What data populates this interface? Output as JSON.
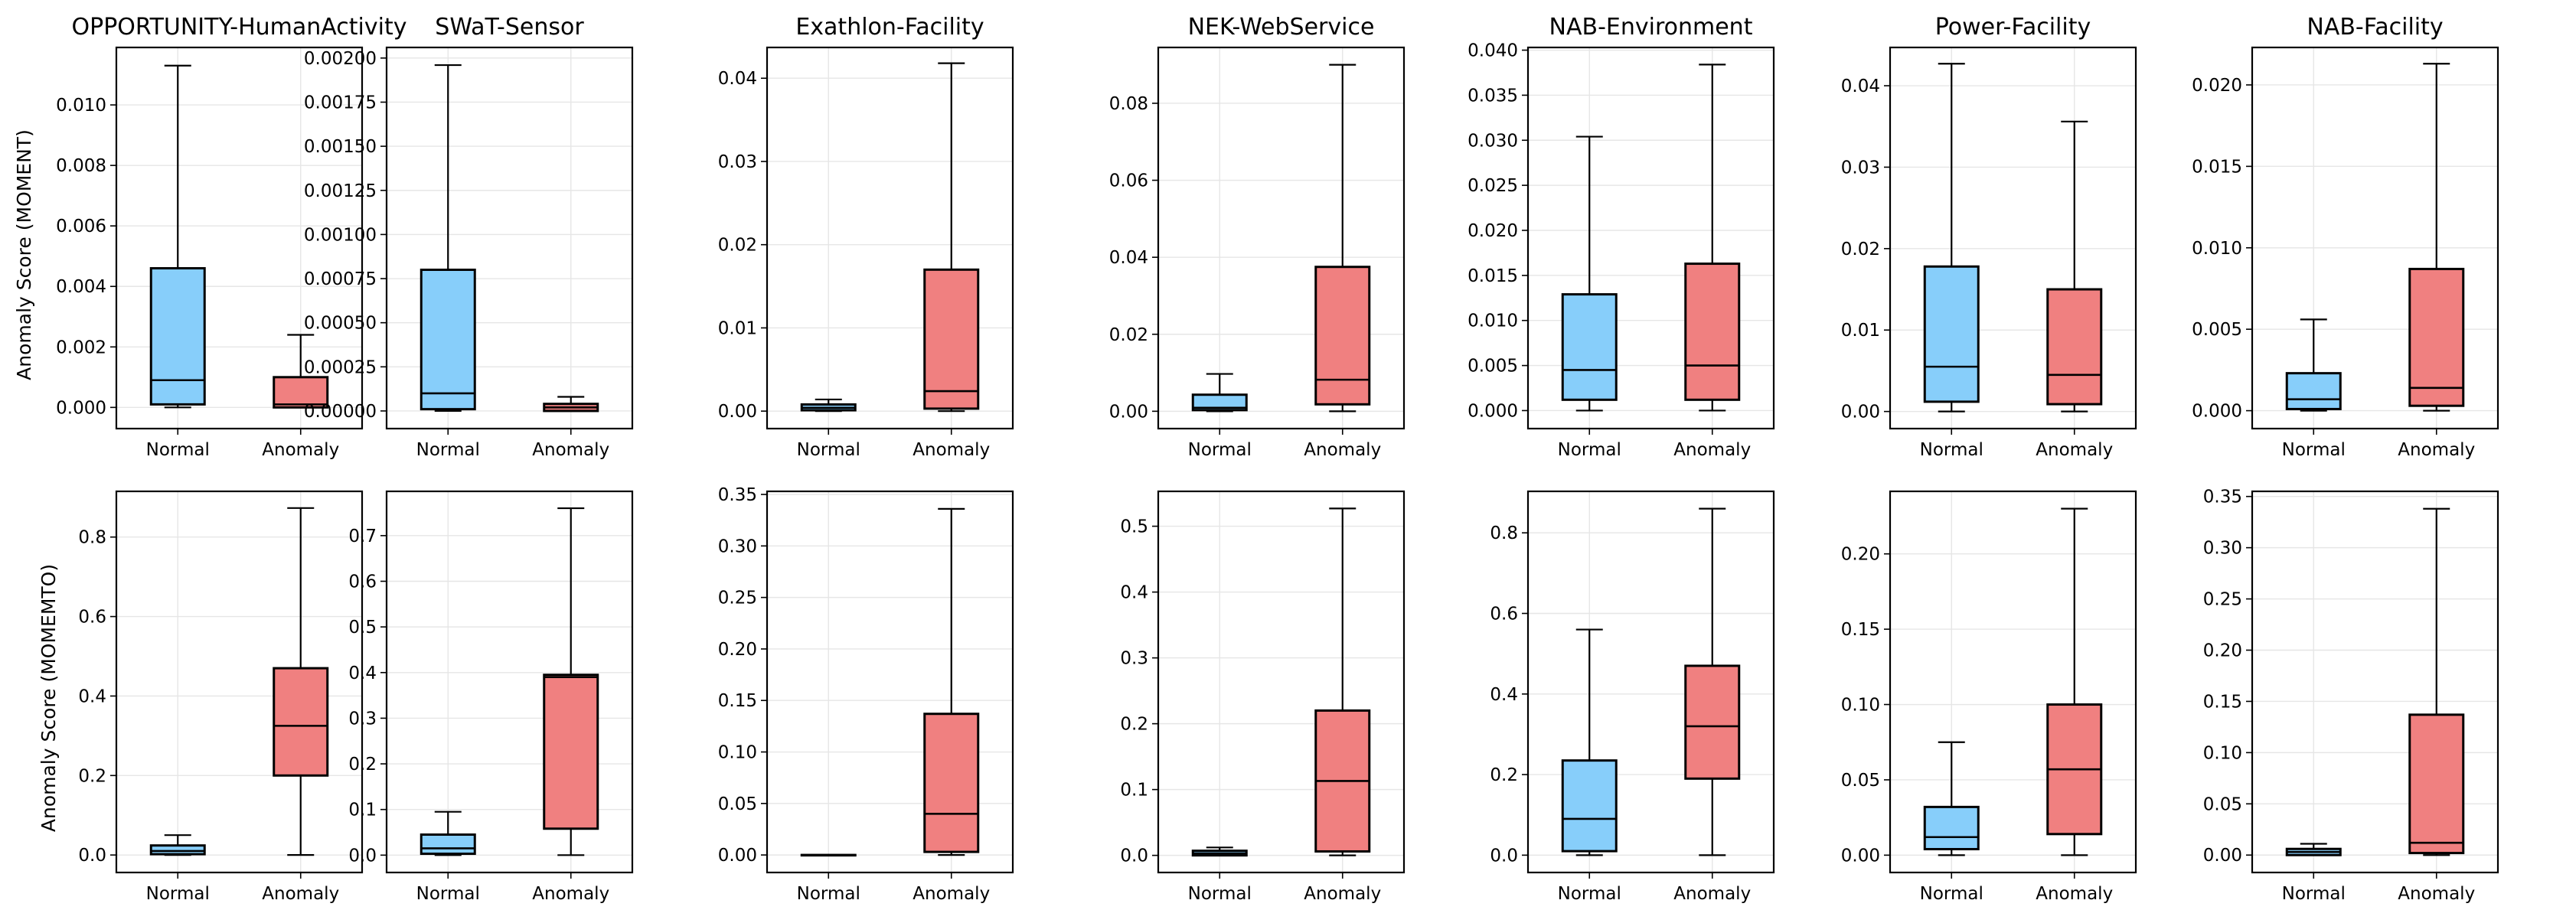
{
  "colors": {
    "normal": "#87cefa",
    "anomaly": "#f08080"
  },
  "row_ylabels": [
    "Anomaly Score (MOMENT)",
    "Anomaly Score (MOMEMTO)"
  ],
  "chart_data": [
    {
      "type": "box",
      "row": 0,
      "title": "OPPORTUNITY-HumanActivity",
      "categories": [
        "Normal",
        "Anomaly"
      ],
      "ylim": [
        -0.0007,
        0.0119
      ],
      "yticks": [
        "0.000",
        "0.002",
        "0.004",
        "0.006",
        "0.008",
        "0.010"
      ],
      "ytick_values": [
        0,
        0.002,
        0.004,
        0.006,
        0.008,
        0.01
      ],
      "boxes": [
        {
          "name": "Normal",
          "whislo": 0.0,
          "q1": 0.0001,
          "med": 0.0009,
          "q3": 0.0046,
          "whishi": 0.0113
        },
        {
          "name": "Anomaly",
          "whislo": 0.0,
          "q1": 0.0,
          "med": 0.0001,
          "q3": 0.001,
          "whishi": 0.0024
        }
      ]
    },
    {
      "type": "box",
      "row": 0,
      "title": "SWaT-Sensor",
      "categories": [
        "Normal",
        "Anomaly"
      ],
      "ylim": [
        -0.0001,
        0.00206
      ],
      "yticks": [
        "0.00000",
        "0.00025",
        "0.00050",
        "0.00075",
        "0.00100",
        "0.00125",
        "0.00150",
        "0.00175",
        "0.00200"
      ],
      "ytick_values": [
        0,
        0.00025,
        0.0005,
        0.00075,
        0.001,
        0.00125,
        0.0015,
        0.00175,
        0.002
      ],
      "boxes": [
        {
          "name": "Normal",
          "whislo": 0.0,
          "q1": 1e-05,
          "med": 0.0001,
          "q3": 0.0008,
          "whishi": 0.00196
        },
        {
          "name": "Anomaly",
          "whislo": 0.0,
          "q1": 0.0,
          "med": 2e-05,
          "q3": 4e-05,
          "whishi": 8e-05
        }
      ]
    },
    {
      "type": "box",
      "row": 0,
      "title": "Exathlon-Facility",
      "categories": [
        "Normal",
        "Anomaly"
      ],
      "ylim": [
        -0.0021,
        0.0437
      ],
      "yticks": [
        "0.00",
        "0.01",
        "0.02",
        "0.03",
        "0.04"
      ],
      "ytick_values": [
        0,
        0.01,
        0.02,
        0.03,
        0.04
      ],
      "boxes": [
        {
          "name": "Normal",
          "whislo": 0.0,
          "q1": 0.0001,
          "med": 0.0004,
          "q3": 0.0008,
          "whishi": 0.0014
        },
        {
          "name": "Anomaly",
          "whislo": 0.0,
          "q1": 0.0003,
          "med": 0.0024,
          "q3": 0.017,
          "whishi": 0.0418
        }
      ]
    },
    {
      "type": "box",
      "row": 0,
      "title": "NEK-WebService",
      "categories": [
        "Normal",
        "Anomaly"
      ],
      "ylim": [
        -0.0045,
        0.0945
      ],
      "yticks": [
        "0.00",
        "0.02",
        "0.04",
        "0.06",
        "0.08"
      ],
      "ytick_values": [
        0,
        0.02,
        0.04,
        0.06,
        0.08
      ],
      "boxes": [
        {
          "name": "Normal",
          "whislo": 0.0,
          "q1": 0.0003,
          "med": 0.0009,
          "q3": 0.0043,
          "whishi": 0.0097
        },
        {
          "name": "Anomaly",
          "whislo": 0.0,
          "q1": 0.0018,
          "med": 0.0082,
          "q3": 0.0375,
          "whishi": 0.09
        }
      ]
    },
    {
      "type": "box",
      "row": 0,
      "title": "NAB-Environment",
      "categories": [
        "Normal",
        "Anomaly"
      ],
      "ylim": [
        -0.002,
        0.0403
      ],
      "yticks": [
        "0.000",
        "0.005",
        "0.010",
        "0.015",
        "0.020",
        "0.025",
        "0.030",
        "0.035",
        "0.040"
      ],
      "ytick_values": [
        0,
        0.005,
        0.01,
        0.015,
        0.02,
        0.025,
        0.03,
        0.035,
        0.04
      ],
      "boxes": [
        {
          "name": "Normal",
          "whislo": 0.0,
          "q1": 0.0012,
          "med": 0.0045,
          "q3": 0.0129,
          "whishi": 0.0304
        },
        {
          "name": "Anomaly",
          "whislo": 0.0,
          "q1": 0.0012,
          "med": 0.005,
          "q3": 0.0163,
          "whishi": 0.0384
        }
      ]
    },
    {
      "type": "box",
      "row": 0,
      "title": "Power-Facility",
      "categories": [
        "Normal",
        "Anomaly"
      ],
      "ylim": [
        -0.0021,
        0.0447
      ],
      "yticks": [
        "0.00",
        "0.01",
        "0.02",
        "0.03",
        "0.04"
      ],
      "ytick_values": [
        0,
        0.01,
        0.02,
        0.03,
        0.04
      ],
      "boxes": [
        {
          "name": "Normal",
          "whislo": 0.0,
          "q1": 0.0012,
          "med": 0.0055,
          "q3": 0.0178,
          "whishi": 0.0427
        },
        {
          "name": "Anomaly",
          "whislo": 0.0,
          "q1": 0.0009,
          "med": 0.0045,
          "q3": 0.015,
          "whishi": 0.0356
        }
      ]
    },
    {
      "type": "box",
      "row": 0,
      "title": "NAB-Facility",
      "categories": [
        "Normal",
        "Anomaly"
      ],
      "ylim": [
        -0.0011,
        0.0223
      ],
      "yticks": [
        "0.000",
        "0.005",
        "0.010",
        "0.015",
        "0.020"
      ],
      "ytick_values": [
        0,
        0.005,
        0.01,
        0.015,
        0.02
      ],
      "boxes": [
        {
          "name": "Normal",
          "whislo": 0.0,
          "q1": 0.0001,
          "med": 0.0007,
          "q3": 0.0023,
          "whishi": 0.0056
        },
        {
          "name": "Anomaly",
          "whislo": 0.0,
          "q1": 0.0003,
          "med": 0.0014,
          "q3": 0.0087,
          "whishi": 0.0213
        }
      ]
    },
    {
      "type": "box",
      "row": 1,
      "title": "",
      "categories": [
        "Normal",
        "Anomaly"
      ],
      "ylim": [
        -0.044,
        0.915
      ],
      "yticks": [
        "0.0",
        "0.2",
        "0.4",
        "0.6",
        "0.8"
      ],
      "ytick_values": [
        0,
        0.2,
        0.4,
        0.6,
        0.8
      ],
      "boxes": [
        {
          "name": "Normal",
          "whislo": 0.0,
          "q1": 0.002,
          "med": 0.01,
          "q3": 0.024,
          "whishi": 0.05
        },
        {
          "name": "Anomaly",
          "whislo": 0.0,
          "q1": 0.2,
          "med": 0.325,
          "q3": 0.47,
          "whishi": 0.873
        }
      ]
    },
    {
      "type": "box",
      "row": 1,
      "title": "",
      "categories": [
        "Normal",
        "Anomaly"
      ],
      "ylim": [
        -0.038,
        0.797
      ],
      "yticks": [
        "0.0",
        "0.1",
        "0.2",
        "0.3",
        "0.4",
        "0.5",
        "0.6",
        "0.7"
      ],
      "ytick_values": [
        0,
        0.1,
        0.2,
        0.3,
        0.4,
        0.5,
        0.6,
        0.7
      ],
      "boxes": [
        {
          "name": "Normal",
          "whislo": 0.0,
          "q1": 0.003,
          "med": 0.015,
          "q3": 0.045,
          "whishi": 0.095
        },
        {
          "name": "Anomaly",
          "whislo": 0.0,
          "q1": 0.058,
          "med": 0.39,
          "q3": 0.395,
          "whishi": 0.76
        }
      ]
    },
    {
      "type": "box",
      "row": 1,
      "title": "",
      "categories": [
        "Normal",
        "Anomaly"
      ],
      "ylim": [
        -0.017,
        0.353
      ],
      "yticks": [
        "0.00",
        "0.05",
        "0.10",
        "0.15",
        "0.20",
        "0.25",
        "0.30",
        "0.35"
      ],
      "ytick_values": [
        0,
        0.05,
        0.1,
        0.15,
        0.2,
        0.25,
        0.3,
        0.35
      ],
      "boxes": [
        {
          "name": "Normal",
          "whislo": 0.0,
          "q1": 0.0,
          "med": 0.0,
          "q3": 0.0,
          "whishi": 0.0
        },
        {
          "name": "Anomaly",
          "whislo": 0.0,
          "q1": 0.003,
          "med": 0.04,
          "q3": 0.137,
          "whishi": 0.336
        }
      ]
    },
    {
      "type": "box",
      "row": 1,
      "title": "",
      "categories": [
        "Normal",
        "Anomaly"
      ],
      "ylim": [
        -0.026,
        0.553
      ],
      "yticks": [
        "0.0",
        "0.1",
        "0.2",
        "0.3",
        "0.4",
        "0.5"
      ],
      "ytick_values": [
        0,
        0.1,
        0.2,
        0.3,
        0.4,
        0.5
      ],
      "boxes": [
        {
          "name": "Normal",
          "whislo": 0.0,
          "q1": 0.0,
          "med": 0.003,
          "q3": 0.007,
          "whishi": 0.012
        },
        {
          "name": "Anomaly",
          "whislo": 0.0,
          "q1": 0.006,
          "med": 0.113,
          "q3": 0.22,
          "whishi": 0.527
        }
      ]
    },
    {
      "type": "box",
      "row": 1,
      "title": "",
      "categories": [
        "Normal",
        "Anomaly"
      ],
      "ylim": [
        -0.043,
        0.903
      ],
      "yticks": [
        "0.0",
        "0.2",
        "0.4",
        "0.6",
        "0.8"
      ],
      "ytick_values": [
        0,
        0.2,
        0.4,
        0.6,
        0.8
      ],
      "boxes": [
        {
          "name": "Normal",
          "whislo": 0.0,
          "q1": 0.01,
          "med": 0.09,
          "q3": 0.235,
          "whishi": 0.56
        },
        {
          "name": "Anomaly",
          "whislo": 0.0,
          "q1": 0.19,
          "med": 0.32,
          "q3": 0.47,
          "whishi": 0.86
        }
      ]
    },
    {
      "type": "box",
      "row": 1,
      "title": "",
      "categories": [
        "Normal",
        "Anomaly"
      ],
      "ylim": [
        -0.0115,
        0.2415
      ],
      "yticks": [
        "0.00",
        "0.05",
        "0.10",
        "0.15",
        "0.20"
      ],
      "ytick_values": [
        0,
        0.05,
        0.1,
        0.15,
        0.2
      ],
      "boxes": [
        {
          "name": "Normal",
          "whislo": 0.0,
          "q1": 0.004,
          "med": 0.012,
          "q3": 0.032,
          "whishi": 0.075
        },
        {
          "name": "Anomaly",
          "whislo": 0.0,
          "q1": 0.014,
          "med": 0.057,
          "q3": 0.1,
          "whishi": 0.23
        }
      ]
    },
    {
      "type": "box",
      "row": 1,
      "title": "",
      "categories": [
        "Normal",
        "Anomaly"
      ],
      "ylim": [
        -0.017,
        0.355
      ],
      "yticks": [
        "0.00",
        "0.05",
        "0.10",
        "0.15",
        "0.20",
        "0.25",
        "0.30",
        "0.35"
      ],
      "ytick_values": [
        0,
        0.05,
        0.1,
        0.15,
        0.2,
        0.25,
        0.3,
        0.35
      ],
      "boxes": [
        {
          "name": "Normal",
          "whislo": 0.0,
          "q1": 0.0,
          "med": 0.003,
          "q3": 0.006,
          "whishi": 0.011
        },
        {
          "name": "Anomaly",
          "whislo": 0.0,
          "q1": 0.002,
          "med": 0.012,
          "q3": 0.137,
          "whishi": 0.338
        }
      ]
    }
  ]
}
